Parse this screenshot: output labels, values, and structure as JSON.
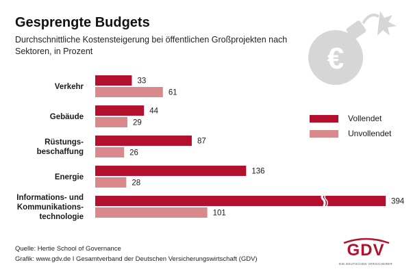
{
  "header": {
    "title": "Gesprengte Budgets",
    "subtitle": "Durchschnittliche Kostensteigerung bei öffentlichen Großprojekten nach Sektoren, in Prozent"
  },
  "colors": {
    "completed": "#b3102e",
    "incomplete": "#d9898c",
    "icon_gray": "#d6d6d6"
  },
  "icons": [
    "bomb-euro-icon",
    "axis-break-icon"
  ],
  "chart_data": {
    "type": "bar",
    "orientation": "horizontal",
    "categories": [
      [
        "Verkehr"
      ],
      [
        "Gebäude"
      ],
      [
        "Rüstungs-",
        "beschaffung"
      ],
      [
        "Energie"
      ],
      [
        "Informations- und",
        "Kommunikations-",
        "technologie"
      ]
    ],
    "series": [
      {
        "name": "Vollendet",
        "values": [
          33,
          44,
          87,
          136,
          394
        ]
      },
      {
        "name": "Unvollendet",
        "values": [
          61,
          29,
          26,
          28,
          101
        ]
      }
    ],
    "axis_break": {
      "category_index": 4,
      "series_index": 0
    },
    "legend_position": "right",
    "grid": false
  },
  "footer": {
    "source": "Quelle: Hertie School of Governance",
    "credit": "Grafik: www.gdv.de I Gesamtverband der Deutschen Versicherungswirtschaft (GDV)"
  },
  "logo": {
    "text": "GDV",
    "subtext": "DIE DEUTSCHEN VERSICHERER"
  }
}
